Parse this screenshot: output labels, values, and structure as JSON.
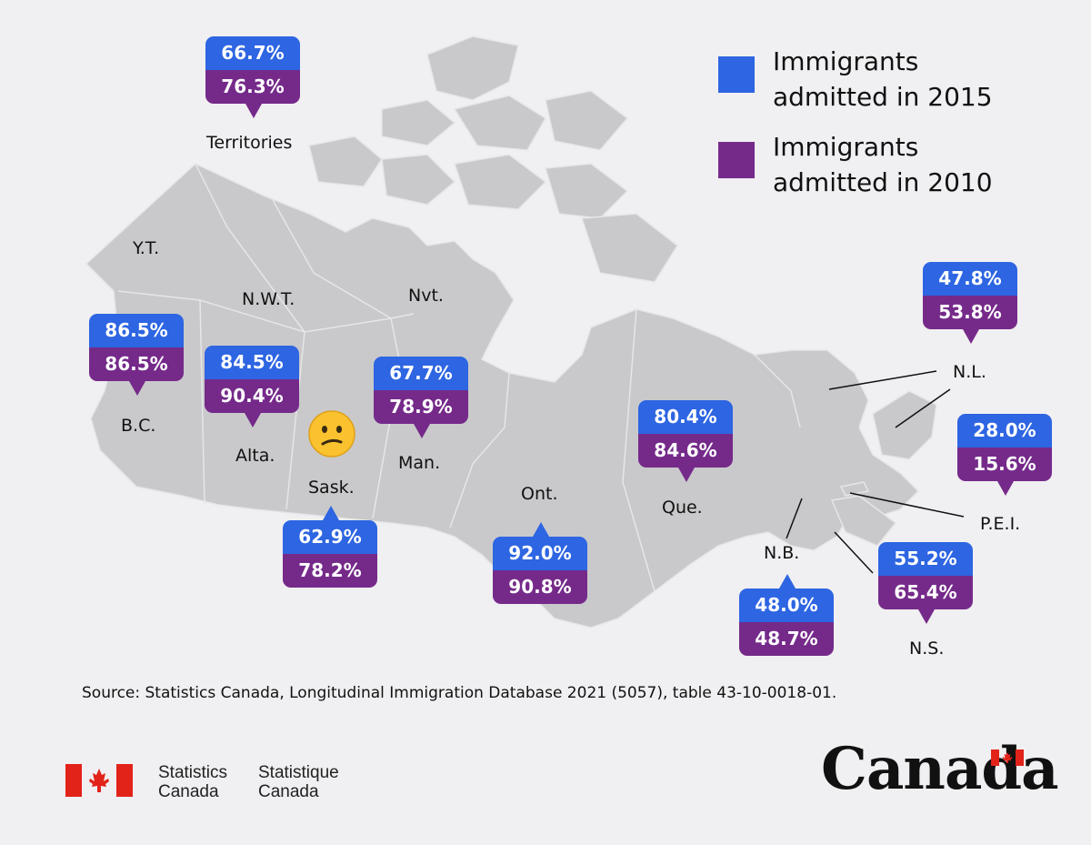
{
  "legend": [
    {
      "label": "Immigrants\nadmitted in 2015",
      "color": "#2d65e2"
    },
    {
      "label": "Immigrants\nadmitted in 2010",
      "color": "#752a8a"
    }
  ],
  "regions": {
    "territories": {
      "name": "Territories",
      "v2015": "66.7%",
      "v2010": "76.3%"
    },
    "yt": {
      "name": "Y.T."
    },
    "nwt": {
      "name": "N.W.T."
    },
    "nvt": {
      "name": "Nvt."
    },
    "bc": {
      "name": "B.C.",
      "v2015": "86.5%",
      "v2010": "86.5%"
    },
    "alta": {
      "name": "Alta.",
      "v2015": "84.5%",
      "v2010": "90.4%"
    },
    "sask": {
      "name": "Sask.",
      "v2015": "62.9%",
      "v2010": "78.2%"
    },
    "man": {
      "name": "Man.",
      "v2015": "67.7%",
      "v2010": "78.9%"
    },
    "ont": {
      "name": "Ont.",
      "v2015": "92.0%",
      "v2010": "90.8%"
    },
    "que": {
      "name": "Que.",
      "v2015": "80.4%",
      "v2010": "84.6%"
    },
    "nl": {
      "name": "N.L.",
      "v2015": "47.8%",
      "v2010": "53.8%"
    },
    "pei": {
      "name": "P.E.I.",
      "v2015": "28.0%",
      "v2010": "15.6%"
    },
    "nb": {
      "name": "N.B.",
      "v2015": "48.0%",
      "v2010": "48.7%"
    },
    "ns": {
      "name": "N.S.",
      "v2015": "55.2%",
      "v2010": "65.4%"
    }
  },
  "emoji": "confused-face",
  "source": "Source: Statistics Canada, Longitudinal Immigration Database 2021 (5057), table 43-10-0018-01.",
  "logo": {
    "en_line1": "Statistics",
    "en_line2": "Canada",
    "fr_line1": "Statistique",
    "fr_line2": "Canada",
    "wordmark": "Canada"
  },
  "colors": {
    "land": "#c9c9cb",
    "border": "#e6e6e8",
    "background": "#f0eff1"
  }
}
